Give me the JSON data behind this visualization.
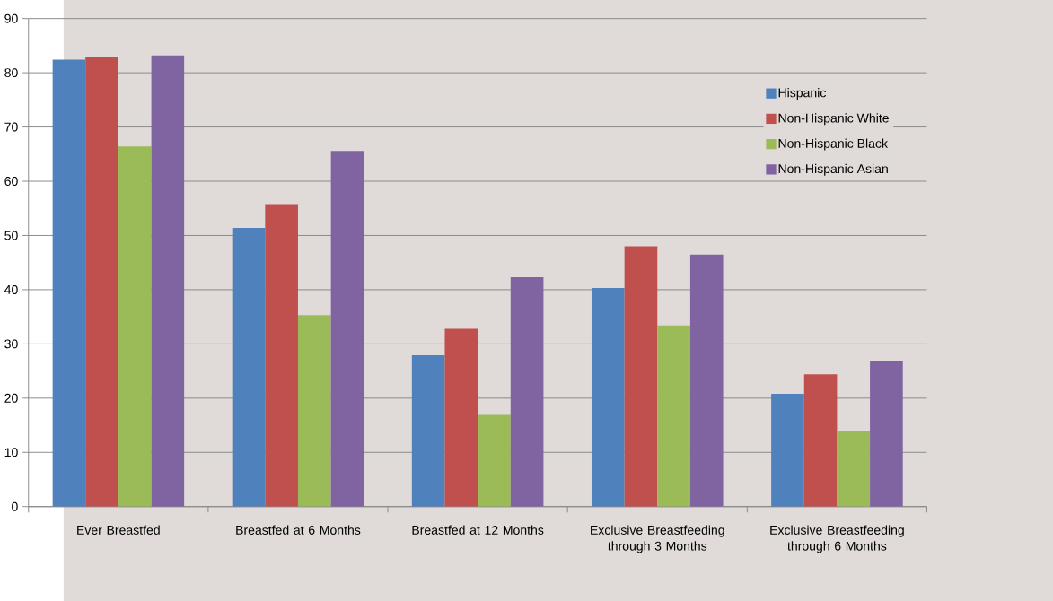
{
  "chart_data": {
    "type": "bar",
    "categories": [
      "Ever Breastfed",
      "Breastfed at 6 Months",
      "Breastfed at 12 Months",
      "Exclusive Breastfeeding through 3 Months",
      "Exclusive Breastfeeding through 6 Months"
    ],
    "series": [
      {
        "name": "Hispanic",
        "color": "#4f81bd",
        "values": [
          82.4,
          51.4,
          27.9,
          40.3,
          20.8
        ]
      },
      {
        "name": "Non-Hispanic White",
        "color": "#c0504d",
        "values": [
          83.0,
          55.8,
          32.8,
          48.0,
          24.4
        ]
      },
      {
        "name": "Non-Hispanic Black",
        "color": "#9bbb59",
        "values": [
          66.4,
          35.3,
          16.9,
          33.4,
          13.9
        ]
      },
      {
        "name": "Non-Hispanic Asian",
        "color": "#8064a2",
        "values": [
          83.2,
          65.6,
          42.3,
          46.5,
          26.9
        ]
      }
    ],
    "ylim": [
      0,
      90
    ],
    "yticks": [
      0,
      10,
      20,
      30,
      40,
      50,
      60,
      70,
      80,
      90
    ],
    "grid": "y",
    "legend": "right"
  }
}
